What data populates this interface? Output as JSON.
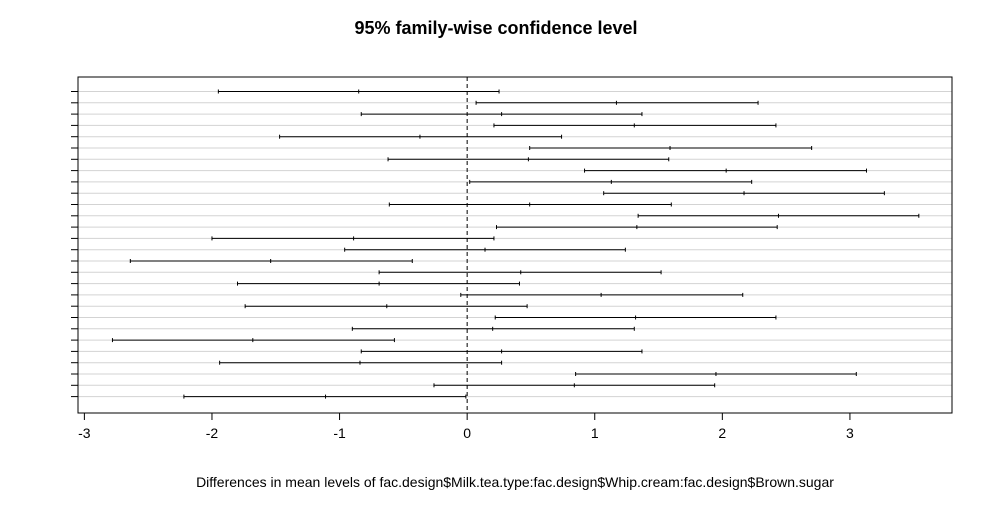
{
  "chart_data": {
    "type": "interval",
    "title": "95% family-wise confidence level",
    "xlabel": "Differences in mean levels of fac.design$Milk.tea.type:fac.design$Whip.cream:fac.design$Brown.sugar",
    "ylabel": "",
    "xlim": [
      -3.05,
      3.8
    ],
    "xticks": [
      -3,
      -2,
      -1,
      0,
      1,
      2,
      3
    ],
    "reference_line": 0,
    "grid": "horizontal",
    "intervals": [
      {
        "lwr": -1.95,
        "diff": -0.85,
        "upr": 0.25
      },
      {
        "lwr": 0.07,
        "diff": 1.17,
        "upr": 2.28
      },
      {
        "lwr": -0.83,
        "diff": 0.27,
        "upr": 1.37
      },
      {
        "lwr": 0.21,
        "diff": 1.31,
        "upr": 2.42
      },
      {
        "lwr": -1.47,
        "diff": -0.37,
        "upr": 0.74
      },
      {
        "lwr": 0.49,
        "diff": 1.59,
        "upr": 2.7
      },
      {
        "lwr": -0.62,
        "diff": 0.48,
        "upr": 1.58
      },
      {
        "lwr": 0.92,
        "diff": 2.03,
        "upr": 3.13
      },
      {
        "lwr": 0.02,
        "diff": 1.13,
        "upr": 2.23
      },
      {
        "lwr": 1.07,
        "diff": 2.17,
        "upr": 3.27
      },
      {
        "lwr": -0.61,
        "diff": 0.49,
        "upr": 1.6
      },
      {
        "lwr": 1.34,
        "diff": 2.44,
        "upr": 3.54
      },
      {
        "lwr": 0.23,
        "diff": 1.33,
        "upr": 2.43
      },
      {
        "lwr": -2.0,
        "diff": -0.89,
        "upr": 0.21
      },
      {
        "lwr": -0.96,
        "diff": 0.14,
        "upr": 1.24
      },
      {
        "lwr": -2.64,
        "diff": -1.54,
        "upr": -0.43
      },
      {
        "lwr": -0.69,
        "diff": 0.42,
        "upr": 1.52
      },
      {
        "lwr": -1.8,
        "diff": -0.69,
        "upr": 0.41
      },
      {
        "lwr": -0.05,
        "diff": 1.05,
        "upr": 2.16
      },
      {
        "lwr": -1.74,
        "diff": -0.63,
        "upr": 0.47
      },
      {
        "lwr": 0.22,
        "diff": 1.32,
        "upr": 2.42
      },
      {
        "lwr": -0.9,
        "diff": 0.2,
        "upr": 1.31
      },
      {
        "lwr": -2.78,
        "diff": -1.68,
        "upr": -0.57
      },
      {
        "lwr": -0.83,
        "diff": 0.27,
        "upr": 1.37
      },
      {
        "lwr": -1.94,
        "diff": -0.84,
        "upr": 0.27
      },
      {
        "lwr": 0.85,
        "diff": 1.95,
        "upr": 3.05
      },
      {
        "lwr": -0.26,
        "diff": 0.84,
        "upr": 1.94
      },
      {
        "lwr": -2.22,
        "diff": -1.11,
        "upr": -0.01
      }
    ]
  }
}
